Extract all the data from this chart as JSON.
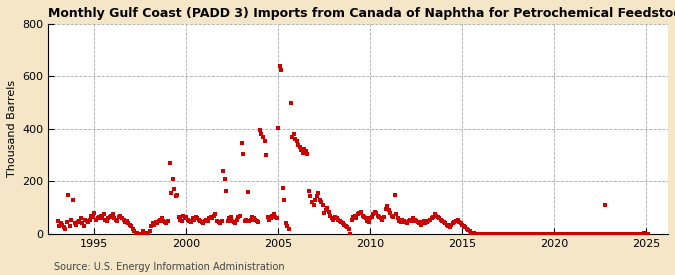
{
  "title": "Monthly Gulf Coast (PADD 3) Imports from Canada of Naphtha for Petrochemical Feedstock Use",
  "ylabel": "Thousand Barrels",
  "source": "Source: U.S. Energy Information Administration",
  "background_color": "#f5e6c8",
  "plot_background_color": "#ffffff",
  "marker_color": "#cc0000",
  "marker_size": 5,
  "xlim": [
    1992.5,
    2026.2
  ],
  "ylim": [
    0,
    800
  ],
  "yticks": [
    0,
    200,
    400,
    600,
    800
  ],
  "xticks": [
    1995,
    2000,
    2005,
    2010,
    2015,
    2020,
    2025
  ],
  "data": {
    "1993-01": 50,
    "1993-02": 30,
    "1993-03": 40,
    "1993-04": 35,
    "1993-05": 25,
    "1993-06": 20,
    "1993-07": 45,
    "1993-08": 150,
    "1993-09": 30,
    "1993-10": 55,
    "1993-11": 130,
    "1993-12": 40,
    "1994-01": 35,
    "1994-02": 45,
    "1994-03": 50,
    "1994-04": 60,
    "1994-05": 40,
    "1994-06": 30,
    "1994-07": 55,
    "1994-08": 50,
    "1994-09": 45,
    "1994-10": 55,
    "1994-11": 70,
    "1994-12": 65,
    "1995-01": 80,
    "1995-02": 55,
    "1995-03": 60,
    "1995-04": 65,
    "1995-05": 70,
    "1995-06": 60,
    "1995-07": 75,
    "1995-08": 55,
    "1995-09": 50,
    "1995-10": 60,
    "1995-11": 65,
    "1995-12": 70,
    "1996-01": 75,
    "1996-02": 60,
    "1996-03": 55,
    "1996-04": 50,
    "1996-05": 65,
    "1996-06": 70,
    "1996-07": 60,
    "1996-08": 55,
    "1996-09": 45,
    "1996-10": 50,
    "1996-11": 40,
    "1996-12": 35,
    "1997-01": 30,
    "1997-02": 20,
    "1997-03": 10,
    "1997-04": 0,
    "1997-05": 5,
    "1997-06": 0,
    "1997-07": 0,
    "1997-08": 0,
    "1997-09": 10,
    "1997-10": 5,
    "1997-11": 0,
    "1997-12": 5,
    "1998-01": 10,
    "1998-02": 30,
    "1998-03": 40,
    "1998-04": 35,
    "1998-05": 45,
    "1998-06": 40,
    "1998-07": 50,
    "1998-08": 55,
    "1998-09": 60,
    "1998-10": 50,
    "1998-11": 45,
    "1998-12": 40,
    "1999-01": 50,
    "1999-02": 270,
    "1999-03": 155,
    "1999-04": 210,
    "1999-05": 170,
    "1999-06": 145,
    "1999-07": 150,
    "1999-08": 65,
    "1999-09": 55,
    "1999-10": 50,
    "1999-11": 70,
    "1999-12": 60,
    "2000-01": 65,
    "2000-02": 55,
    "2000-03": 50,
    "2000-04": 45,
    "2000-05": 60,
    "2000-06": 55,
    "2000-07": 65,
    "2000-08": 60,
    "2000-09": 55,
    "2000-10": 50,
    "2000-11": 45,
    "2000-12": 40,
    "2001-01": 50,
    "2001-02": 55,
    "2001-03": 50,
    "2001-04": 60,
    "2001-05": 65,
    "2001-06": 60,
    "2001-07": 70,
    "2001-08": 75,
    "2001-09": 50,
    "2001-10": 45,
    "2001-11": 40,
    "2001-12": 50,
    "2002-01": 240,
    "2002-02": 210,
    "2002-03": 165,
    "2002-04": 50,
    "2002-05": 60,
    "2002-06": 65,
    "2002-07": 50,
    "2002-08": 45,
    "2002-09": 40,
    "2002-10": 55,
    "2002-11": 65,
    "2002-12": 70,
    "2003-01": 345,
    "2003-02": 305,
    "2003-03": 50,
    "2003-04": 55,
    "2003-05": 160,
    "2003-06": 50,
    "2003-07": 55,
    "2003-08": 65,
    "2003-09": 60,
    "2003-10": 55,
    "2003-11": 50,
    "2003-12": 45,
    "2004-01": 395,
    "2004-02": 380,
    "2004-03": 370,
    "2004-04": 355,
    "2004-05": 300,
    "2004-06": 65,
    "2004-07": 55,
    "2004-08": 60,
    "2004-09": 70,
    "2004-10": 75,
    "2004-11": 65,
    "2004-12": 60,
    "2005-01": 405,
    "2005-02": 640,
    "2005-03": 625,
    "2005-04": 175,
    "2005-05": 130,
    "2005-06": 40,
    "2005-07": 30,
    "2005-08": 20,
    "2005-09": 500,
    "2005-10": 370,
    "2005-11": 380,
    "2005-12": 360,
    "2006-01": 355,
    "2006-02": 340,
    "2006-03": 330,
    "2006-04": 320,
    "2006-05": 310,
    "2006-06": 325,
    "2006-07": 315,
    "2006-08": 305,
    "2006-09": 165,
    "2006-10": 145,
    "2006-11": 120,
    "2006-12": 110,
    "2007-01": 130,
    "2007-02": 145,
    "2007-03": 155,
    "2007-04": 130,
    "2007-05": 120,
    "2007-06": 110,
    "2007-07": 80,
    "2007-08": 90,
    "2007-09": 100,
    "2007-10": 85,
    "2007-11": 70,
    "2007-12": 60,
    "2008-01": 55,
    "2008-02": 65,
    "2008-03": 60,
    "2008-04": 55,
    "2008-05": 50,
    "2008-06": 45,
    "2008-07": 40,
    "2008-08": 35,
    "2008-09": 30,
    "2008-10": 25,
    "2008-11": 20,
    "2008-12": 0,
    "2009-01": 55,
    "2009-02": 65,
    "2009-03": 70,
    "2009-04": 60,
    "2009-05": 75,
    "2009-06": 80,
    "2009-07": 85,
    "2009-08": 70,
    "2009-09": 65,
    "2009-10": 60,
    "2009-11": 50,
    "2009-12": 45,
    "2010-01": 60,
    "2010-02": 65,
    "2010-03": 75,
    "2010-04": 85,
    "2010-05": 80,
    "2010-06": 70,
    "2010-07": 65,
    "2010-08": 60,
    "2010-09": 55,
    "2010-10": 65,
    "2010-11": 95,
    "2010-12": 105,
    "2011-01": 90,
    "2011-02": 80,
    "2011-03": 70,
    "2011-04": 65,
    "2011-05": 150,
    "2011-06": 75,
    "2011-07": 60,
    "2011-08": 50,
    "2011-09": 45,
    "2011-10": 55,
    "2011-11": 50,
    "2011-12": 45,
    "2012-01": 40,
    "2012-02": 50,
    "2012-03": 55,
    "2012-04": 50,
    "2012-05": 60,
    "2012-06": 55,
    "2012-07": 50,
    "2012-08": 45,
    "2012-09": 40,
    "2012-10": 35,
    "2012-11": 45,
    "2012-12": 50,
    "2013-01": 40,
    "2013-02": 45,
    "2013-03": 50,
    "2013-04": 55,
    "2013-05": 60,
    "2013-06": 65,
    "2013-07": 75,
    "2013-08": 70,
    "2013-09": 65,
    "2013-10": 60,
    "2013-11": 55,
    "2013-12": 50,
    "2014-01": 45,
    "2014-02": 40,
    "2014-03": 35,
    "2014-04": 30,
    "2014-05": 25,
    "2014-06": 35,
    "2014-07": 40,
    "2014-08": 45,
    "2014-09": 50,
    "2014-10": 55,
    "2014-11": 45,
    "2014-12": 40,
    "2015-01": 35,
    "2015-02": 30,
    "2015-03": 25,
    "2015-04": 20,
    "2015-05": 15,
    "2015-06": 10,
    "2015-07": 5,
    "2015-08": 0,
    "2015-09": 5,
    "2015-10": 0,
    "2015-11": 0,
    "2015-12": 0,
    "2016-01": 0,
    "2016-02": 0,
    "2016-03": 0,
    "2016-04": 0,
    "2016-05": 0,
    "2016-06": 0,
    "2016-07": 0,
    "2016-08": 0,
    "2016-09": 0,
    "2016-10": 0,
    "2016-11": 0,
    "2016-12": 0,
    "2017-01": 0,
    "2017-02": 0,
    "2017-03": 0,
    "2017-04": 0,
    "2017-05": 0,
    "2017-06": 0,
    "2017-07": 0,
    "2017-08": 0,
    "2017-09": 0,
    "2017-10": 0,
    "2017-11": 0,
    "2017-12": 0,
    "2018-01": 0,
    "2018-02": 0,
    "2018-03": 0,
    "2018-04": 0,
    "2018-05": 0,
    "2018-06": 0,
    "2018-07": 0,
    "2018-08": 0,
    "2018-09": 0,
    "2018-10": 0,
    "2018-11": 0,
    "2018-12": 0,
    "2019-01": 0,
    "2019-02": 0,
    "2019-03": 0,
    "2019-04": 0,
    "2019-05": 0,
    "2019-06": 0,
    "2019-07": 0,
    "2019-08": 0,
    "2019-09": 0,
    "2019-10": 0,
    "2019-11": 0,
    "2019-12": 0,
    "2020-01": 0,
    "2020-02": 0,
    "2020-03": 0,
    "2020-04": 0,
    "2020-05": 0,
    "2020-06": 0,
    "2020-07": 0,
    "2020-08": 0,
    "2020-09": 0,
    "2020-10": 0,
    "2020-11": 0,
    "2020-12": 0,
    "2021-01": 0,
    "2021-02": 0,
    "2021-03": 0,
    "2021-04": 0,
    "2021-05": 0,
    "2021-06": 0,
    "2021-07": 0,
    "2021-08": 0,
    "2021-09": 0,
    "2021-10": 0,
    "2021-11": 0,
    "2021-12": 0,
    "2022-01": 0,
    "2022-02": 0,
    "2022-03": 0,
    "2022-04": 0,
    "2022-05": 0,
    "2022-06": 0,
    "2022-07": 0,
    "2022-08": 0,
    "2022-09": 0,
    "2022-10": 110,
    "2022-11": 0,
    "2022-12": 0,
    "2023-01": 0,
    "2023-02": 0,
    "2023-03": 0,
    "2023-04": 0,
    "2023-05": 0,
    "2023-06": 0,
    "2023-07": 0,
    "2023-08": 0,
    "2023-09": 0,
    "2023-10": 0,
    "2023-11": 0,
    "2023-12": 0,
    "2024-01": 0,
    "2024-02": 0,
    "2024-03": 0,
    "2024-04": 0,
    "2024-05": 0,
    "2024-06": 0,
    "2024-07": 0,
    "2024-08": 0,
    "2024-09": 0,
    "2024-10": 0,
    "2024-11": 0,
    "2024-12": 5,
    "2025-01": 0,
    "2025-02": 0
  }
}
